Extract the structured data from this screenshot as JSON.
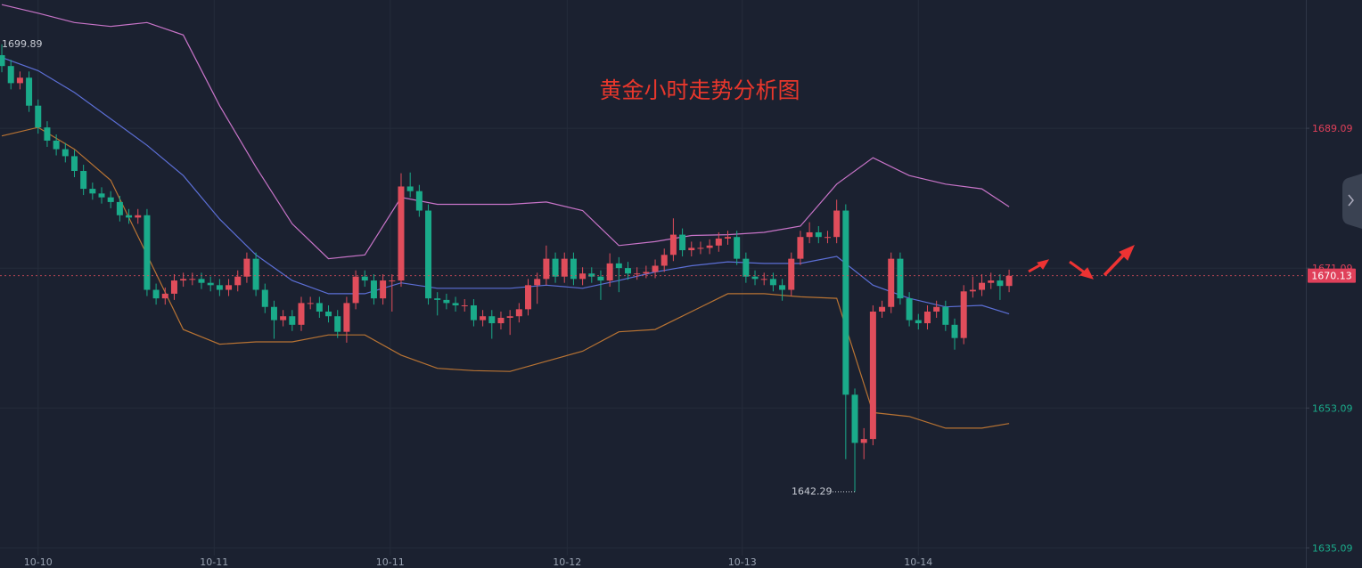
{
  "chart_data": {
    "type": "candlestick",
    "title": "黄金小时走势分析图",
    "up_color": "#e04d5b",
    "down_color": "#1aab8a",
    "ylim": [
      1632.5,
      1705.6
    ],
    "yticks": [
      1689.09,
      1671.09,
      1653.09,
      1635.09
    ],
    "xlim": [
      -0.2,
      143.7
    ],
    "xticks": [
      {
        "value": 4,
        "label": "10-10"
      },
      {
        "value": 23.4,
        "label": "10-11"
      },
      {
        "value": 42.8,
        "label": "10-11"
      },
      {
        "value": 62.3,
        "label": "10-12"
      },
      {
        "value": 81.6,
        "label": "10-13"
      },
      {
        "value": 101,
        "label": "10-14"
      }
    ],
    "grid": true,
    "high_label": 1699.89,
    "low_label": 1642.29,
    "last_price": 1670.13,
    "candles": [
      [
        1698.5,
        1699.9,
        1696.3,
        1697.1
      ],
      [
        1697.1,
        1697.9,
        1694.1,
        1694.9
      ],
      [
        1694.9,
        1696.4,
        1694.1,
        1695.6
      ],
      [
        1695.6,
        1696.4,
        1691.2,
        1692.0
      ],
      [
        1692.0,
        1692.8,
        1688.4,
        1689.2
      ],
      [
        1689.2,
        1690.0,
        1686.7,
        1687.5
      ],
      [
        1687.5,
        1688.3,
        1685.6,
        1686.4
      ],
      [
        1686.4,
        1687.2,
        1684.7,
        1685.5
      ],
      [
        1685.5,
        1686.3,
        1682.8,
        1683.6
      ],
      [
        1683.6,
        1684.4,
        1680.5,
        1681.3
      ],
      [
        1681.3,
        1682.1,
        1679.9,
        1680.7
      ],
      [
        1680.7,
        1681.5,
        1679.4,
        1680.2
      ],
      [
        1680.2,
        1681.0,
        1678.8,
        1679.6
      ],
      [
        1679.6,
        1680.4,
        1677.1,
        1677.9
      ],
      [
        1677.9,
        1678.7,
        1676.8,
        1677.6
      ],
      [
        1677.6,
        1678.7,
        1676.8,
        1677.9
      ],
      [
        1677.9,
        1678.7,
        1667.5,
        1668.3
      ],
      [
        1668.3,
        1669.1,
        1666.4,
        1667.2
      ],
      [
        1667.2,
        1668.6,
        1666.4,
        1667.8
      ],
      [
        1667.8,
        1670.3,
        1667.0,
        1669.5
      ],
      [
        1669.5,
        1670.5,
        1668.7,
        1669.7
      ],
      [
        1669.7,
        1670.5,
        1668.9,
        1669.7
      ],
      [
        1669.7,
        1670.5,
        1668.4,
        1669.2
      ],
      [
        1669.2,
        1670.0,
        1668.1,
        1668.9
      ],
      [
        1668.9,
        1669.7,
        1667.5,
        1668.3
      ],
      [
        1668.3,
        1669.7,
        1667.5,
        1668.9
      ],
      [
        1668.9,
        1670.8,
        1668.1,
        1670.0
      ],
      [
        1670.0,
        1673.1,
        1669.2,
        1672.3
      ],
      [
        1672.3,
        1673.1,
        1667.5,
        1668.3
      ],
      [
        1668.3,
        1669.1,
        1665.3,
        1666.1
      ],
      [
        1666.1,
        1666.9,
        1662.0,
        1664.4
      ],
      [
        1664.4,
        1665.7,
        1663.6,
        1664.9
      ],
      [
        1664.9,
        1665.7,
        1663.0,
        1663.8
      ],
      [
        1663.8,
        1667.4,
        1663.0,
        1666.6
      ],
      [
        1666.6,
        1667.4,
        1665.8,
        1666.6
      ],
      [
        1666.6,
        1667.4,
        1664.7,
        1665.5
      ],
      [
        1665.5,
        1666.3,
        1664.1,
        1664.9
      ],
      [
        1664.9,
        1665.7,
        1662.1,
        1662.9
      ],
      [
        1662.9,
        1667.4,
        1661.5,
        1666.6
      ],
      [
        1666.6,
        1670.8,
        1665.8,
        1670.0
      ],
      [
        1670.0,
        1670.8,
        1668.7,
        1669.5
      ],
      [
        1669.5,
        1670.3,
        1666.4,
        1667.2
      ],
      [
        1667.2,
        1670.3,
        1666.4,
        1669.5
      ],
      [
        1669.5,
        1670.3,
        1665.5,
        1669.5
      ],
      [
        1669.5,
        1683.3,
        1668.7,
        1681.6
      ],
      [
        1681.6,
        1683.4,
        1680.2,
        1681.0
      ],
      [
        1681.0,
        1681.8,
        1677.7,
        1678.5
      ],
      [
        1678.5,
        1679.3,
        1666.4,
        1667.2
      ],
      [
        1667.2,
        1668.0,
        1665.0,
        1667.0
      ],
      [
        1667.0,
        1667.8,
        1665.8,
        1666.6
      ],
      [
        1666.6,
        1667.4,
        1665.5,
        1666.3
      ],
      [
        1666.3,
        1667.1,
        1665.5,
        1666.3
      ],
      [
        1666.3,
        1667.1,
        1663.6,
        1664.4
      ],
      [
        1664.4,
        1665.7,
        1663.6,
        1664.9
      ],
      [
        1664.9,
        1665.7,
        1662.0,
        1664.0
      ],
      [
        1664.0,
        1665.5,
        1663.2,
        1664.7
      ],
      [
        1664.7,
        1665.7,
        1662.5,
        1664.9
      ],
      [
        1664.9,
        1666.6,
        1664.1,
        1665.8
      ],
      [
        1665.8,
        1669.7,
        1665.0,
        1668.9
      ],
      [
        1668.9,
        1670.5,
        1666.5,
        1669.7
      ],
      [
        1669.7,
        1674.0,
        1668.9,
        1672.3
      ],
      [
        1672.3,
        1673.1,
        1669.2,
        1670.0
      ],
      [
        1670.0,
        1673.1,
        1669.2,
        1672.3
      ],
      [
        1672.3,
        1673.1,
        1668.9,
        1669.7
      ],
      [
        1669.7,
        1671.2,
        1668.9,
        1670.4
      ],
      [
        1670.4,
        1671.2,
        1669.2,
        1670.0
      ],
      [
        1670.0,
        1670.8,
        1667.0,
        1669.5
      ],
      [
        1669.5,
        1673.0,
        1668.7,
        1671.7
      ],
      [
        1671.7,
        1672.5,
        1668.0,
        1671.1
      ],
      [
        1671.1,
        1671.9,
        1669.6,
        1670.4
      ],
      [
        1670.4,
        1671.2,
        1669.6,
        1670.4
      ],
      [
        1670.4,
        1671.4,
        1669.8,
        1670.6
      ],
      [
        1670.6,
        1672.2,
        1669.8,
        1671.4
      ],
      [
        1671.4,
        1673.6,
        1670.6,
        1672.8
      ],
      [
        1672.8,
        1677.5,
        1672.0,
        1675.4
      ],
      [
        1675.4,
        1676.2,
        1672.6,
        1673.4
      ],
      [
        1673.4,
        1674.5,
        1672.6,
        1673.7
      ],
      [
        1673.7,
        1674.5,
        1672.9,
        1673.7
      ],
      [
        1673.7,
        1674.8,
        1672.9,
        1674.0
      ],
      [
        1674.0,
        1675.7,
        1673.2,
        1674.9
      ],
      [
        1674.9,
        1675.9,
        1674.1,
        1675.1
      ],
      [
        1675.1,
        1675.9,
        1671.5,
        1672.3
      ],
      [
        1672.3,
        1673.1,
        1669.2,
        1670.0
      ],
      [
        1670.0,
        1670.8,
        1668.9,
        1669.7
      ],
      [
        1669.7,
        1670.5,
        1668.9,
        1669.7
      ],
      [
        1669.7,
        1670.5,
        1668.1,
        1668.9
      ],
      [
        1668.9,
        1669.7,
        1666.9,
        1668.3
      ],
      [
        1668.3,
        1673.1,
        1667.5,
        1672.3
      ],
      [
        1672.3,
        1675.9,
        1671.5,
        1675.1
      ],
      [
        1675.1,
        1677.0,
        1674.3,
        1675.7
      ],
      [
        1675.7,
        1676.5,
        1674.3,
        1675.1
      ],
      [
        1675.1,
        1675.9,
        1674.3,
        1675.1
      ],
      [
        1675.1,
        1679.9,
        1674.3,
        1678.5
      ],
      [
        1678.5,
        1679.3,
        1646.5,
        1654.8
      ],
      [
        1654.8,
        1655.6,
        1642.3,
        1648.6
      ],
      [
        1648.6,
        1650.5,
        1646.5,
        1649.1
      ],
      [
        1649.1,
        1666.3,
        1648.3,
        1665.5
      ],
      [
        1665.5,
        1666.9,
        1664.7,
        1666.1
      ],
      [
        1666.1,
        1673.1,
        1665.3,
        1672.3
      ],
      [
        1672.3,
        1673.1,
        1666.4,
        1667.2
      ],
      [
        1667.2,
        1668.0,
        1663.6,
        1664.4
      ],
      [
        1664.4,
        1665.2,
        1663.2,
        1664.0
      ],
      [
        1664.0,
        1666.3,
        1663.2,
        1665.5
      ],
      [
        1665.5,
        1666.9,
        1664.7,
        1666.1
      ],
      [
        1666.1,
        1666.9,
        1663.0,
        1663.8
      ],
      [
        1663.8,
        1664.6,
        1660.6,
        1662.1
      ],
      [
        1662.1,
        1668.9,
        1661.3,
        1668.1
      ],
      [
        1668.1,
        1670.0,
        1667.3,
        1668.3
      ],
      [
        1668.3,
        1670.3,
        1667.5,
        1669.2
      ],
      [
        1669.2,
        1670.5,
        1668.4,
        1669.5
      ],
      [
        1669.5,
        1670.3,
        1667.0,
        1668.8
      ],
      [
        1668.8,
        1670.9,
        1668.0,
        1670.1
      ]
    ],
    "bands": {
      "x": [
        0,
        4,
        8,
        12,
        16,
        20,
        24,
        28,
        32,
        36,
        40,
        44,
        48,
        52,
        56,
        60,
        64,
        68,
        72,
        76,
        80,
        84,
        88,
        92,
        96,
        100,
        104,
        108,
        111
      ],
      "series": [
        {
          "color": "#c874c8",
          "values": [
            1705.0,
            1703.9,
            1702.7,
            1702.2,
            1702.7,
            1701.1,
            1692.0,
            1684.1,
            1676.8,
            1672.3,
            1672.8,
            1680.2,
            1679.3,
            1679.3,
            1679.3,
            1679.6,
            1678.5,
            1674.0,
            1674.5,
            1675.3,
            1675.4,
            1675.7,
            1676.5,
            1681.9,
            1685.3,
            1683.0,
            1681.9,
            1681.3,
            1679.0
          ]
        },
        {
          "color": "#5c6fd6",
          "values": [
            1698.2,
            1696.5,
            1693.7,
            1690.3,
            1686.9,
            1683.0,
            1677.4,
            1672.8,
            1669.5,
            1667.8,
            1667.8,
            1669.2,
            1668.5,
            1668.5,
            1668.5,
            1668.9,
            1668.5,
            1669.5,
            1670.6,
            1671.4,
            1671.9,
            1671.7,
            1671.7,
            1672.6,
            1668.9,
            1667.2,
            1666.1,
            1666.3,
            1665.2
          ]
        },
        {
          "color": "#b87333",
          "values": [
            1688.1,
            1689.2,
            1686.4,
            1682.4,
            1672.8,
            1663.2,
            1661.3,
            1661.6,
            1661.6,
            1662.5,
            1662.5,
            1659.9,
            1658.2,
            1657.9,
            1657.8,
            1659.1,
            1660.4,
            1662.9,
            1663.2,
            1665.5,
            1667.8,
            1667.8,
            1667.4,
            1667.2,
            1652.5,
            1652.0,
            1650.5,
            1650.5,
            1651.1
          ]
        }
      ]
    }
  }
}
